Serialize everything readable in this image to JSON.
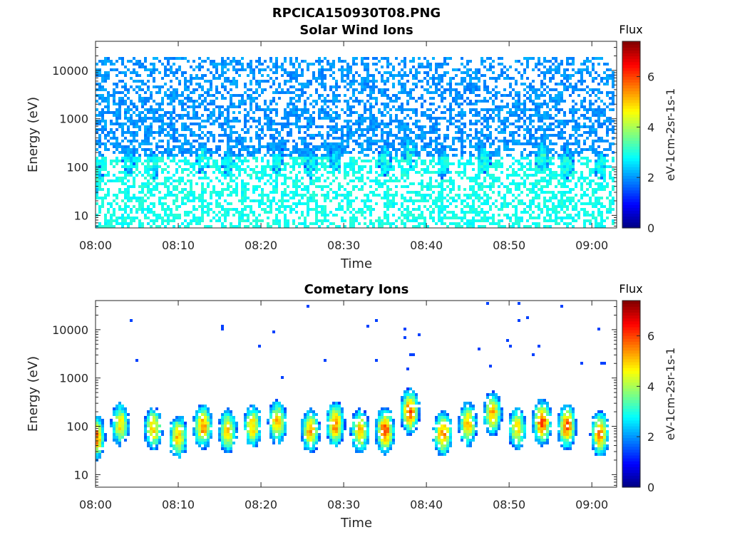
{
  "figure_title": "RPCICA150930T08.PNG",
  "colormap": "jet",
  "chart_data": [
    {
      "type": "heatmap",
      "title": "Solar Wind Ions",
      "xlabel": "Time",
      "ylabel": "Energy (eV)",
      "x_range": [
        "08:00",
        "09:03"
      ],
      "x_ticks": [
        "08:00",
        "08:10",
        "08:20",
        "08:30",
        "08:40",
        "08:50",
        "09:00"
      ],
      "y_scale": "log",
      "y_range": [
        5.5,
        40000
      ],
      "y_ticks": [
        10,
        100,
        1000,
        10000
      ],
      "y_tick_labels": [
        "10",
        "100",
        "1000",
        "10000"
      ],
      "colorbar": {
        "title": "Flux",
        "label": "eV-1cm-2sr-1s-1",
        "range": [
          0,
          7.4
        ],
        "ticks": [
          0,
          2,
          4,
          6
        ]
      },
      "background_level": 2.0,
      "background_max_energy_ev": 20000,
      "bursts": [
        {
          "time": "08:00",
          "energy_ev": 60,
          "level": 3.2
        },
        {
          "time": "08:04",
          "energy_ev": 130,
          "level": 2.7
        },
        {
          "time": "08:07",
          "energy_ev": 110,
          "level": 2.7
        },
        {
          "time": "08:13",
          "energy_ev": 150,
          "level": 3.0
        },
        {
          "time": "08:16",
          "energy_ev": 120,
          "level": 2.7
        },
        {
          "time": "08:22",
          "energy_ev": 150,
          "level": 2.8
        },
        {
          "time": "08:26",
          "energy_ev": 120,
          "level": 2.8
        },
        {
          "time": "08:29",
          "energy_ev": 150,
          "level": 2.8
        },
        {
          "time": "08:35",
          "energy_ev": 140,
          "level": 3.0
        },
        {
          "time": "08:38",
          "energy_ev": 200,
          "level": 3.0
        },
        {
          "time": "08:42",
          "energy_ev": 120,
          "level": 2.8
        },
        {
          "time": "08:47",
          "energy_ev": 150,
          "level": 3.0
        },
        {
          "time": "08:54",
          "energy_ev": 160,
          "level": 3.2
        },
        {
          "time": "08:57",
          "energy_ev": 120,
          "level": 3.0
        },
        {
          "time": "09:01",
          "energy_ev": 110,
          "level": 2.8
        }
      ]
    },
    {
      "type": "heatmap",
      "title": "Cometary Ions",
      "xlabel": "Time",
      "ylabel": "Energy (eV)",
      "x_range": [
        "08:00",
        "09:03"
      ],
      "x_ticks": [
        "08:00",
        "08:10",
        "08:20",
        "08:30",
        "08:40",
        "08:50",
        "09:00"
      ],
      "y_scale": "log",
      "y_range": [
        5.5,
        40000
      ],
      "y_ticks": [
        10,
        100,
        1000,
        10000
      ],
      "y_tick_labels": [
        "10",
        "100",
        "1000",
        "10000"
      ],
      "colorbar": {
        "title": "Flux",
        "label": "eV-1cm-2sr-1s-1",
        "range": [
          0,
          7.4
        ],
        "ticks": [
          0,
          2,
          4,
          6
        ]
      },
      "background_level": 0.0,
      "background_max_energy_ev": 0,
      "bursts": [
        {
          "time": "08:00",
          "energy_ev": 60,
          "level": 5.8
        },
        {
          "time": "08:03",
          "energy_ev": 110,
          "level": 4.8
        },
        {
          "time": "08:07",
          "energy_ev": 90,
          "level": 5.0
        },
        {
          "time": "08:10",
          "energy_ev": 60,
          "level": 5.0
        },
        {
          "time": "08:13",
          "energy_ev": 100,
          "level": 5.5
        },
        {
          "time": "08:16",
          "energy_ev": 80,
          "level": 5.0
        },
        {
          "time": "08:19",
          "energy_ev": 100,
          "level": 5.0
        },
        {
          "time": "08:22",
          "energy_ev": 120,
          "level": 5.2
        },
        {
          "time": "08:26",
          "energy_ev": 80,
          "level": 5.2
        },
        {
          "time": "08:29",
          "energy_ev": 110,
          "level": 5.5
        },
        {
          "time": "08:32",
          "energy_ev": 80,
          "level": 5.2
        },
        {
          "time": "08:35",
          "energy_ev": 80,
          "level": 6.0
        },
        {
          "time": "08:38",
          "energy_ev": 200,
          "level": 5.8
        },
        {
          "time": "08:42",
          "energy_ev": 70,
          "level": 5.5
        },
        {
          "time": "08:45",
          "energy_ev": 110,
          "level": 5.2
        },
        {
          "time": "08:48",
          "energy_ev": 180,
          "level": 5.2
        },
        {
          "time": "08:51",
          "energy_ev": 90,
          "level": 4.8
        },
        {
          "time": "08:54",
          "energy_ev": 120,
          "level": 6.0
        },
        {
          "time": "08:57",
          "energy_ev": 100,
          "level": 5.8
        },
        {
          "time": "09:01",
          "energy_ev": 70,
          "level": 5.5
        }
      ]
    }
  ]
}
